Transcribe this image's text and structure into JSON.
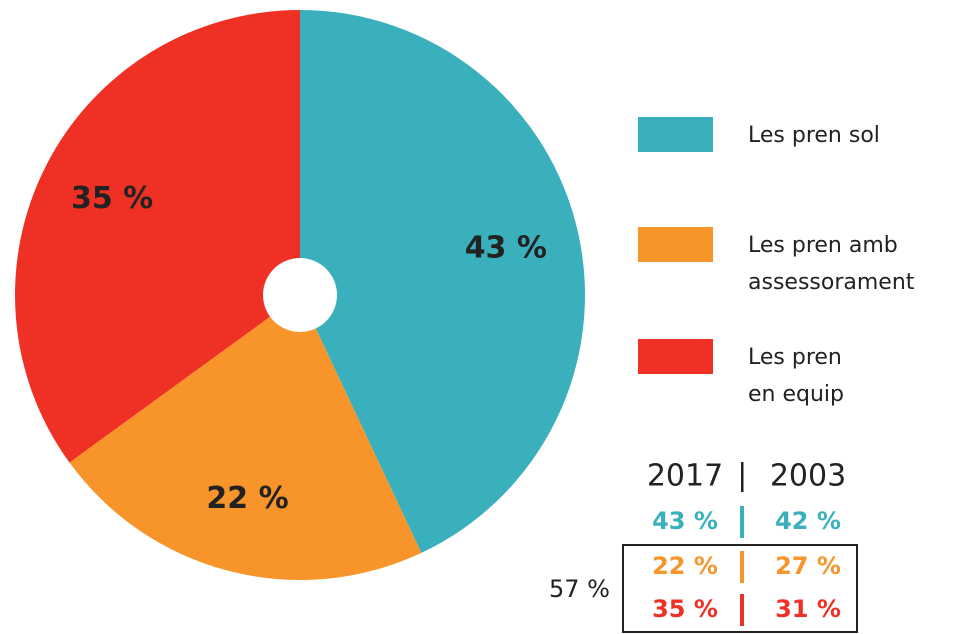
{
  "chart_data": {
    "type": "pie",
    "categories": [
      "Les pren sol",
      "Les pren amb\nassessorament",
      "Les pren\nen equip"
    ],
    "values": [
      43,
      22,
      35
    ],
    "value_labels": [
      "43 %",
      "22 %",
      "35 %"
    ],
    "colors": [
      "#3ab0bd",
      "#f7952a",
      "#ee3124"
    ],
    "comparison": {
      "headers": [
        "2017",
        "2003"
      ],
      "rows": [
        [
          "43 %",
          "42 %"
        ],
        [
          "22 %",
          "27 %"
        ],
        [
          "35 %",
          "31 %"
        ]
      ],
      "group_label": "57 %"
    }
  }
}
